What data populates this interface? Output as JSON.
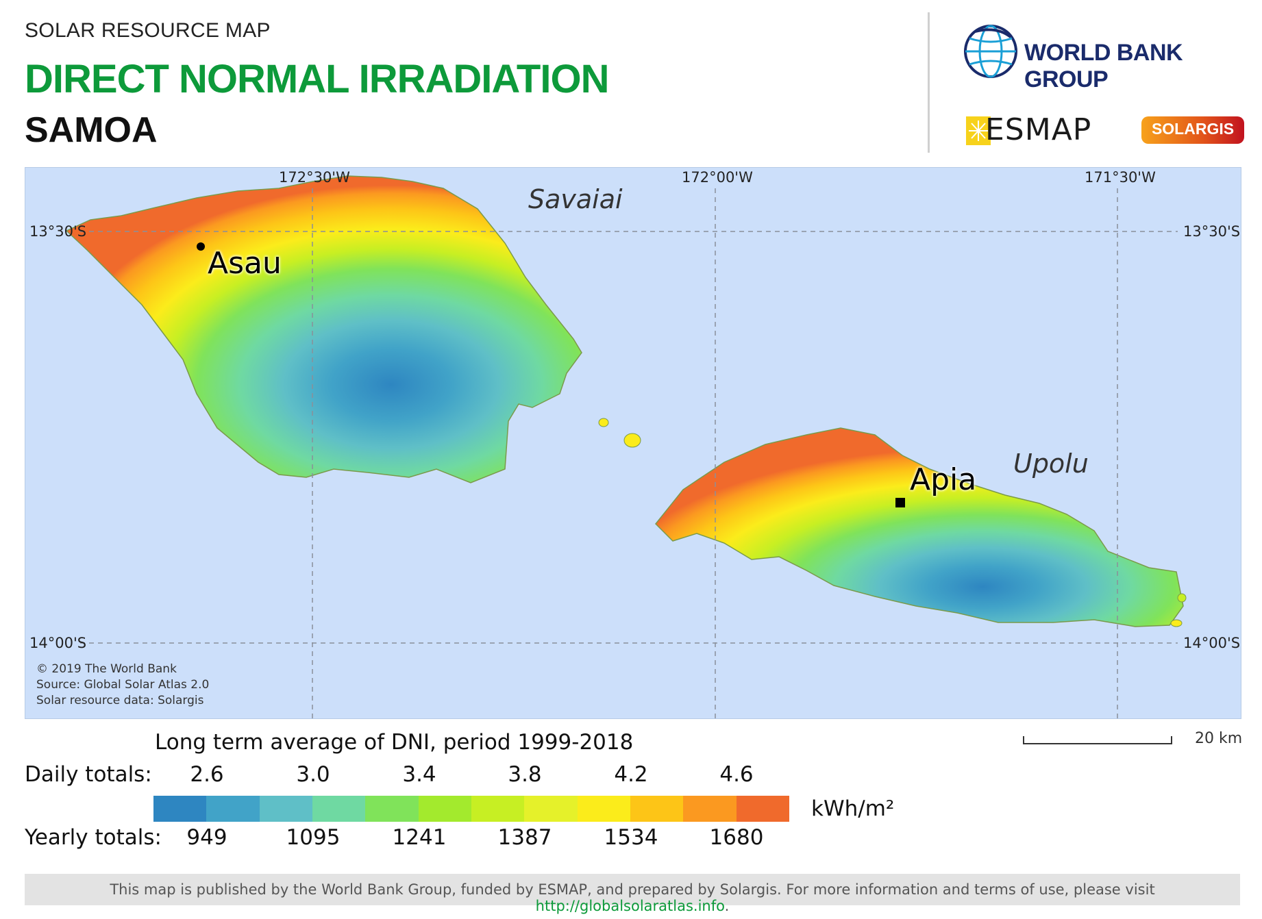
{
  "header": {
    "kicker": "SOLAR RESOURCE MAP",
    "title": "DIRECT NORMAL IRRADIATION",
    "country": "SAMOA"
  },
  "logos": {
    "world_bank": "WORLD BANK GROUP",
    "esmap": "ESMAP",
    "solargis": "SOLARGIS"
  },
  "map": {
    "gridlines": {
      "longitudes": [
        "172°30'W",
        "172°00'W",
        "171°30'W"
      ],
      "latitudes": [
        "13°30'S",
        "14°00'S"
      ]
    },
    "regions": [
      "Savaiai",
      "Upolu"
    ],
    "places": [
      "Asau",
      "Apia"
    ],
    "credits": [
      "© 2019 The World Bank",
      "Source: Global Solar Atlas 2.0",
      "Solar resource data: Solargis"
    ],
    "scale_label": "20 km"
  },
  "legend": {
    "title": "Long term average of DNI, period 1999-2018",
    "daily_label": "Daily totals:",
    "yearly_label": "Yearly totals:",
    "daily_values": [
      "2.6",
      "3.0",
      "3.4",
      "3.8",
      "4.2",
      "4.6"
    ],
    "yearly_values": [
      "949",
      "1095",
      "1241",
      "1387",
      "1534",
      "1680"
    ],
    "unit": "kWh/m²",
    "colors": [
      "#2e86c1",
      "#41a3c8",
      "#5fbfc7",
      "#6fd9a2",
      "#80e35a",
      "#a3ea2d",
      "#c7ef23",
      "#e5f12a",
      "#fbec1b",
      "#fdc517",
      "#fb9920",
      "#f06a2c"
    ]
  },
  "footer": {
    "text": "This map is published by the World Bank Group, funded by ESMAP, and prepared by Solargis. For more information and terms of use, please visit ",
    "link": "http://globalsolaratlas.info",
    "end": "."
  }
}
